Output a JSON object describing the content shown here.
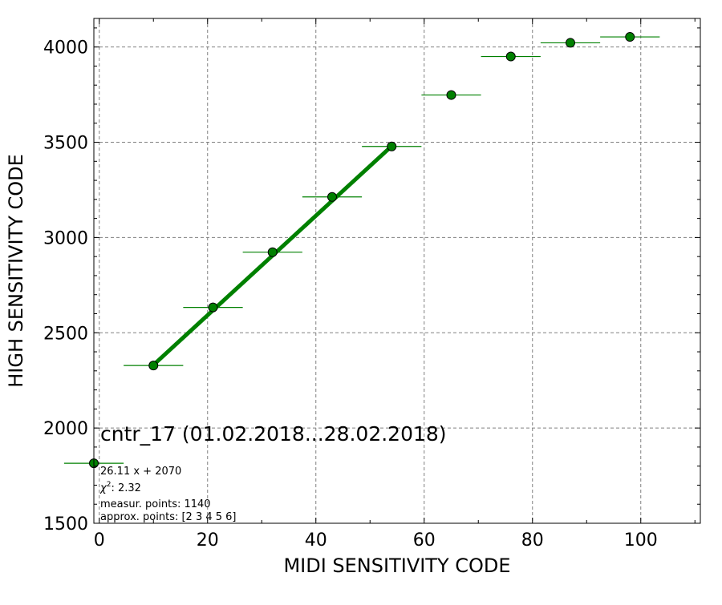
{
  "chart_data": {
    "type": "scatter",
    "title": "",
    "xlabel": "MIDI SENSITIVITY CODE",
    "ylabel": "HIGH SENSITIVITY CODE",
    "xlim": [
      -1,
      111
    ],
    "ylim": [
      1500,
      4150
    ],
    "xticks": [
      0,
      20,
      40,
      60,
      80,
      100
    ],
    "yticks": [
      1500,
      2000,
      2500,
      3000,
      3500,
      4000
    ],
    "grid": true,
    "series": [
      {
        "points": [
          {
            "x": -1,
            "y": 1815,
            "xerr": 5.5
          },
          {
            "x": 10,
            "y": 2328,
            "xerr": 5.5
          },
          {
            "x": 21,
            "y": 2633,
            "xerr": 5.5
          },
          {
            "x": 32,
            "y": 2923,
            "xerr": 5.5
          },
          {
            "x": 43,
            "y": 3213,
            "xerr": 5.5
          },
          {
            "x": 54,
            "y": 3478,
            "xerr": 5.5
          },
          {
            "x": 65,
            "y": 3748,
            "xerr": 5.5
          },
          {
            "x": 76,
            "y": 3950,
            "xerr": 5.5
          },
          {
            "x": 87,
            "y": 4022,
            "xerr": 5.5
          },
          {
            "x": 98,
            "y": 4053,
            "xerr": 5.5
          }
        ]
      }
    ],
    "fit": {
      "slope": 26.11,
      "intercept": 2070,
      "x_range": [
        10,
        54
      ]
    },
    "annotations": {
      "title": "cntr_17 (01.02.2018...28.02.2018)",
      "equation": "26.11 x + 2070",
      "chi2_label": "χ",
      "chi2_sup": "2",
      "chi2_value": ": 2.32",
      "measur": "measur. points: 1140",
      "approx": "approx. points: [2 3 4 5 6]"
    },
    "colors": {
      "series": "#008000",
      "fit": "#008000",
      "grid": "#808080"
    }
  }
}
